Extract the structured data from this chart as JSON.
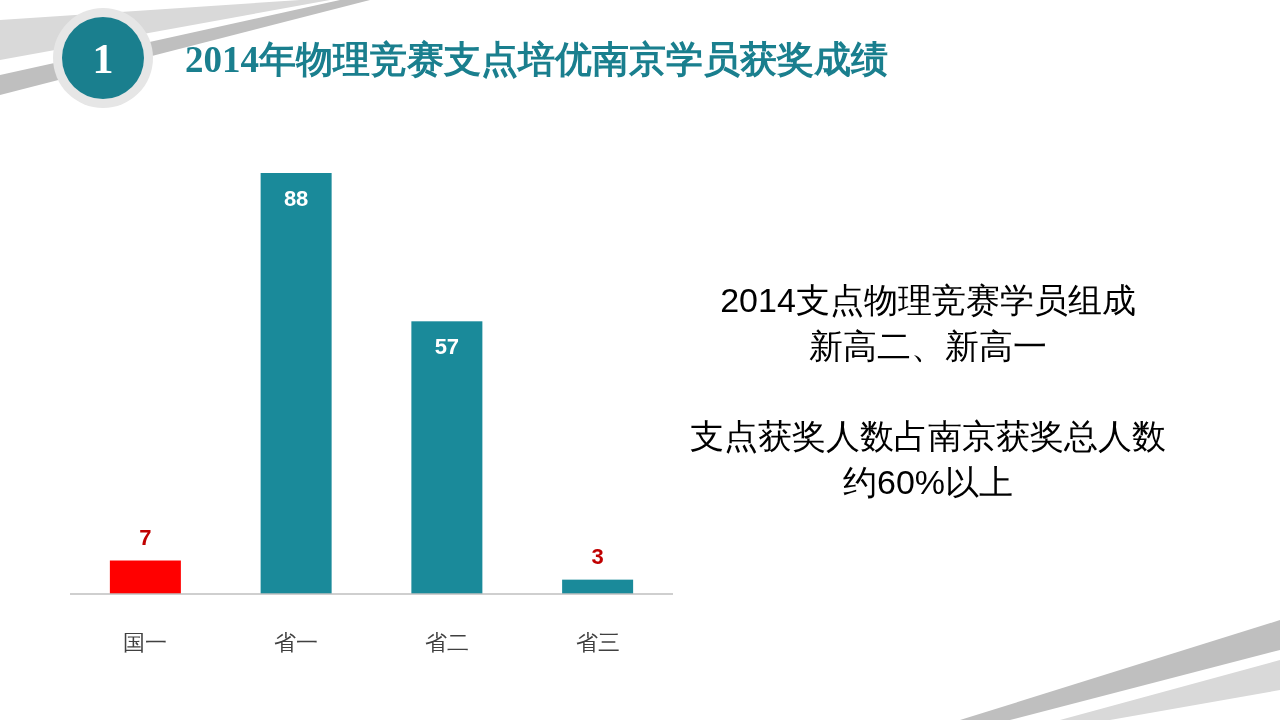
{
  "chart_data": {
    "type": "bar",
    "title": "2014年物理竞赛支点培优南京学员获奖成绩",
    "categories": [
      "国一",
      "省一",
      "省二",
      "省三"
    ],
    "values": [
      7,
      88,
      57,
      3
    ],
    "colors": [
      "#ff0000",
      "#1a8a9a",
      "#1a8a9a",
      "#1a8a9a"
    ],
    "data_labels": true,
    "annotations": [
      "1",
      "2014支点物理竞赛学员组成",
      "新高二、新高一",
      "支点获奖人数占南京获奖总人数",
      "约60%以上"
    ]
  }
}
